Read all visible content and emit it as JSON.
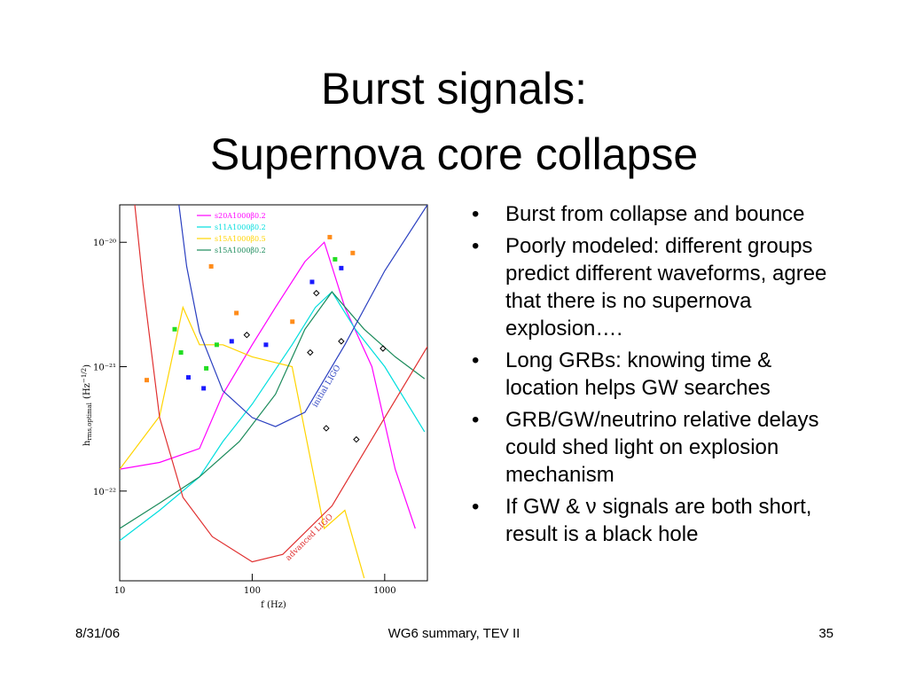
{
  "title": [
    "Burst signals:",
    "Supernova core collapse"
  ],
  "bullets": [
    "Burst from collapse and bounce",
    "Poorly modeled: different groups predict different waveforms, agree that there is no supernova explosion….",
    "Long GRBs: knowing time & location helps GW searches",
    "GRB/GW/neutrino relative delays could shed light on explosion mechanism",
    "If GW & ν signals are both short, result is a black hole"
  ],
  "footer": {
    "date": "8/31/06",
    "center": "WG6 summary, TEV II",
    "page": "35"
  },
  "chart_data": {
    "type": "line",
    "xlabel": "f (Hz)",
    "ylabel": {
      "main": "h",
      "sub": "rms,optimal",
      "unit": "(Hz",
      "exp": "−1/2",
      "close": ")"
    },
    "xscale": "log",
    "yscale": "log",
    "xlim": [
      10,
      2100
    ],
    "ylim": [
      1.9e-23,
      2e-20
    ],
    "xticks": [
      10,
      100,
      1000
    ],
    "yticks": [
      {
        "value": 1e-22,
        "label": "10⁻²²"
      },
      {
        "value": 1e-21,
        "label": "10⁻²¹"
      },
      {
        "value": 1e-20,
        "label": "10⁻²⁰"
      }
    ],
    "legend": "upper left",
    "series": [
      {
        "name": "s20A1000β0.2",
        "color": "#ff00ff",
        "x": [
          10,
          20,
          40,
          60,
          100,
          150,
          250,
          350,
          500,
          800,
          1200,
          1700
        ],
        "values": [
          1.5e-22,
          1.7e-22,
          2.2e-22,
          6e-22,
          1.5e-21,
          3e-21,
          7e-21,
          1e-20,
          3e-21,
          1e-21,
          1.5e-22,
          5e-23
        ]
      },
      {
        "name": "s11A1000β0.2",
        "color": "#00dede",
        "x": [
          10,
          20,
          40,
          60,
          100,
          200,
          300,
          400,
          600,
          1000,
          2000
        ],
        "values": [
          4e-23,
          7e-23,
          1.3e-22,
          2.5e-22,
          5e-22,
          1.5e-21,
          3e-21,
          4e-21,
          2e-21,
          1e-21,
          3e-22
        ]
      },
      {
        "name": "s15A1000β0.5",
        "color": "#ffd400",
        "x": [
          10,
          20,
          30,
          40,
          60,
          100,
          200,
          270,
          350,
          500,
          700
        ],
        "values": [
          1.5e-22,
          4e-22,
          3e-21,
          1.5e-21,
          1.5e-21,
          1.2e-21,
          1e-21,
          2e-22,
          5e-23,
          7e-23,
          2e-23
        ]
      },
      {
        "name": "s15A1000β0.2",
        "color": "#1a8a5a",
        "x": [
          10,
          20,
          40,
          80,
          150,
          250,
          400,
          700,
          1200,
          2000
        ],
        "values": [
          5e-23,
          8e-23,
          1.3e-22,
          2.5e-22,
          6e-22,
          2e-21,
          4e-21,
          2e-21,
          1.2e-21,
          8e-22
        ]
      },
      {
        "label": "initial LIGO",
        "color": "#2a3fc0",
        "x": [
          28,
          32,
          40,
          60,
          100,
          150,
          250,
          500,
          1000,
          2100
        ],
        "values": [
          2e-20,
          6.4e-21,
          1.9e-21,
          6.4e-22,
          3.9e-22,
          3.3e-22,
          4.3e-22,
          1.5e-21,
          5.9e-21,
          2e-20
        ]
      },
      {
        "label": "advanced LIGO",
        "color": "#e03030",
        "x": [
          13,
          15,
          20,
          30,
          50,
          100,
          170,
          400,
          1000,
          2100
        ],
        "values": [
          2e-20,
          4.6e-21,
          3.9e-22,
          8.9e-23,
          4.3e-23,
          2.7e-23,
          3.1e-23,
          7.6e-23,
          3.9e-22,
          1.45e-21
        ]
      },
      {
        "marker": "square",
        "color": "#ff8c1a",
        "x": [
          16,
          49,
          76,
          201,
          385,
          574
        ],
        "values": [
          7.8e-22,
          6.4e-21,
          2.7e-21,
          2.3e-21,
          1.1e-20,
          8.2e-21
        ]
      },
      {
        "marker": "square",
        "color": "#22dd22",
        "x": [
          26,
          29,
          45,
          54,
          422
        ],
        "values": [
          2e-21,
          1.3e-21,
          9.7e-22,
          1.5e-21,
          7.3e-21
        ]
      },
      {
        "marker": "square",
        "color": "#1a1aff",
        "x": [
          33,
          43,
          70,
          127,
          283,
          470
        ],
        "values": [
          8.2e-22,
          6.7e-22,
          1.6e-21,
          1.5e-21,
          4.8e-21,
          6.2e-21
        ]
      },
      {
        "marker": "diamond",
        "color": "#000000",
        "x": [
          91,
          274,
          305,
          362,
          470,
          611,
          970
        ],
        "values": [
          1.8e-21,
          1.3e-21,
          3.9e-21,
          3.2e-22,
          1.6e-21,
          2.6e-22,
          1.4e-21
        ]
      }
    ]
  }
}
